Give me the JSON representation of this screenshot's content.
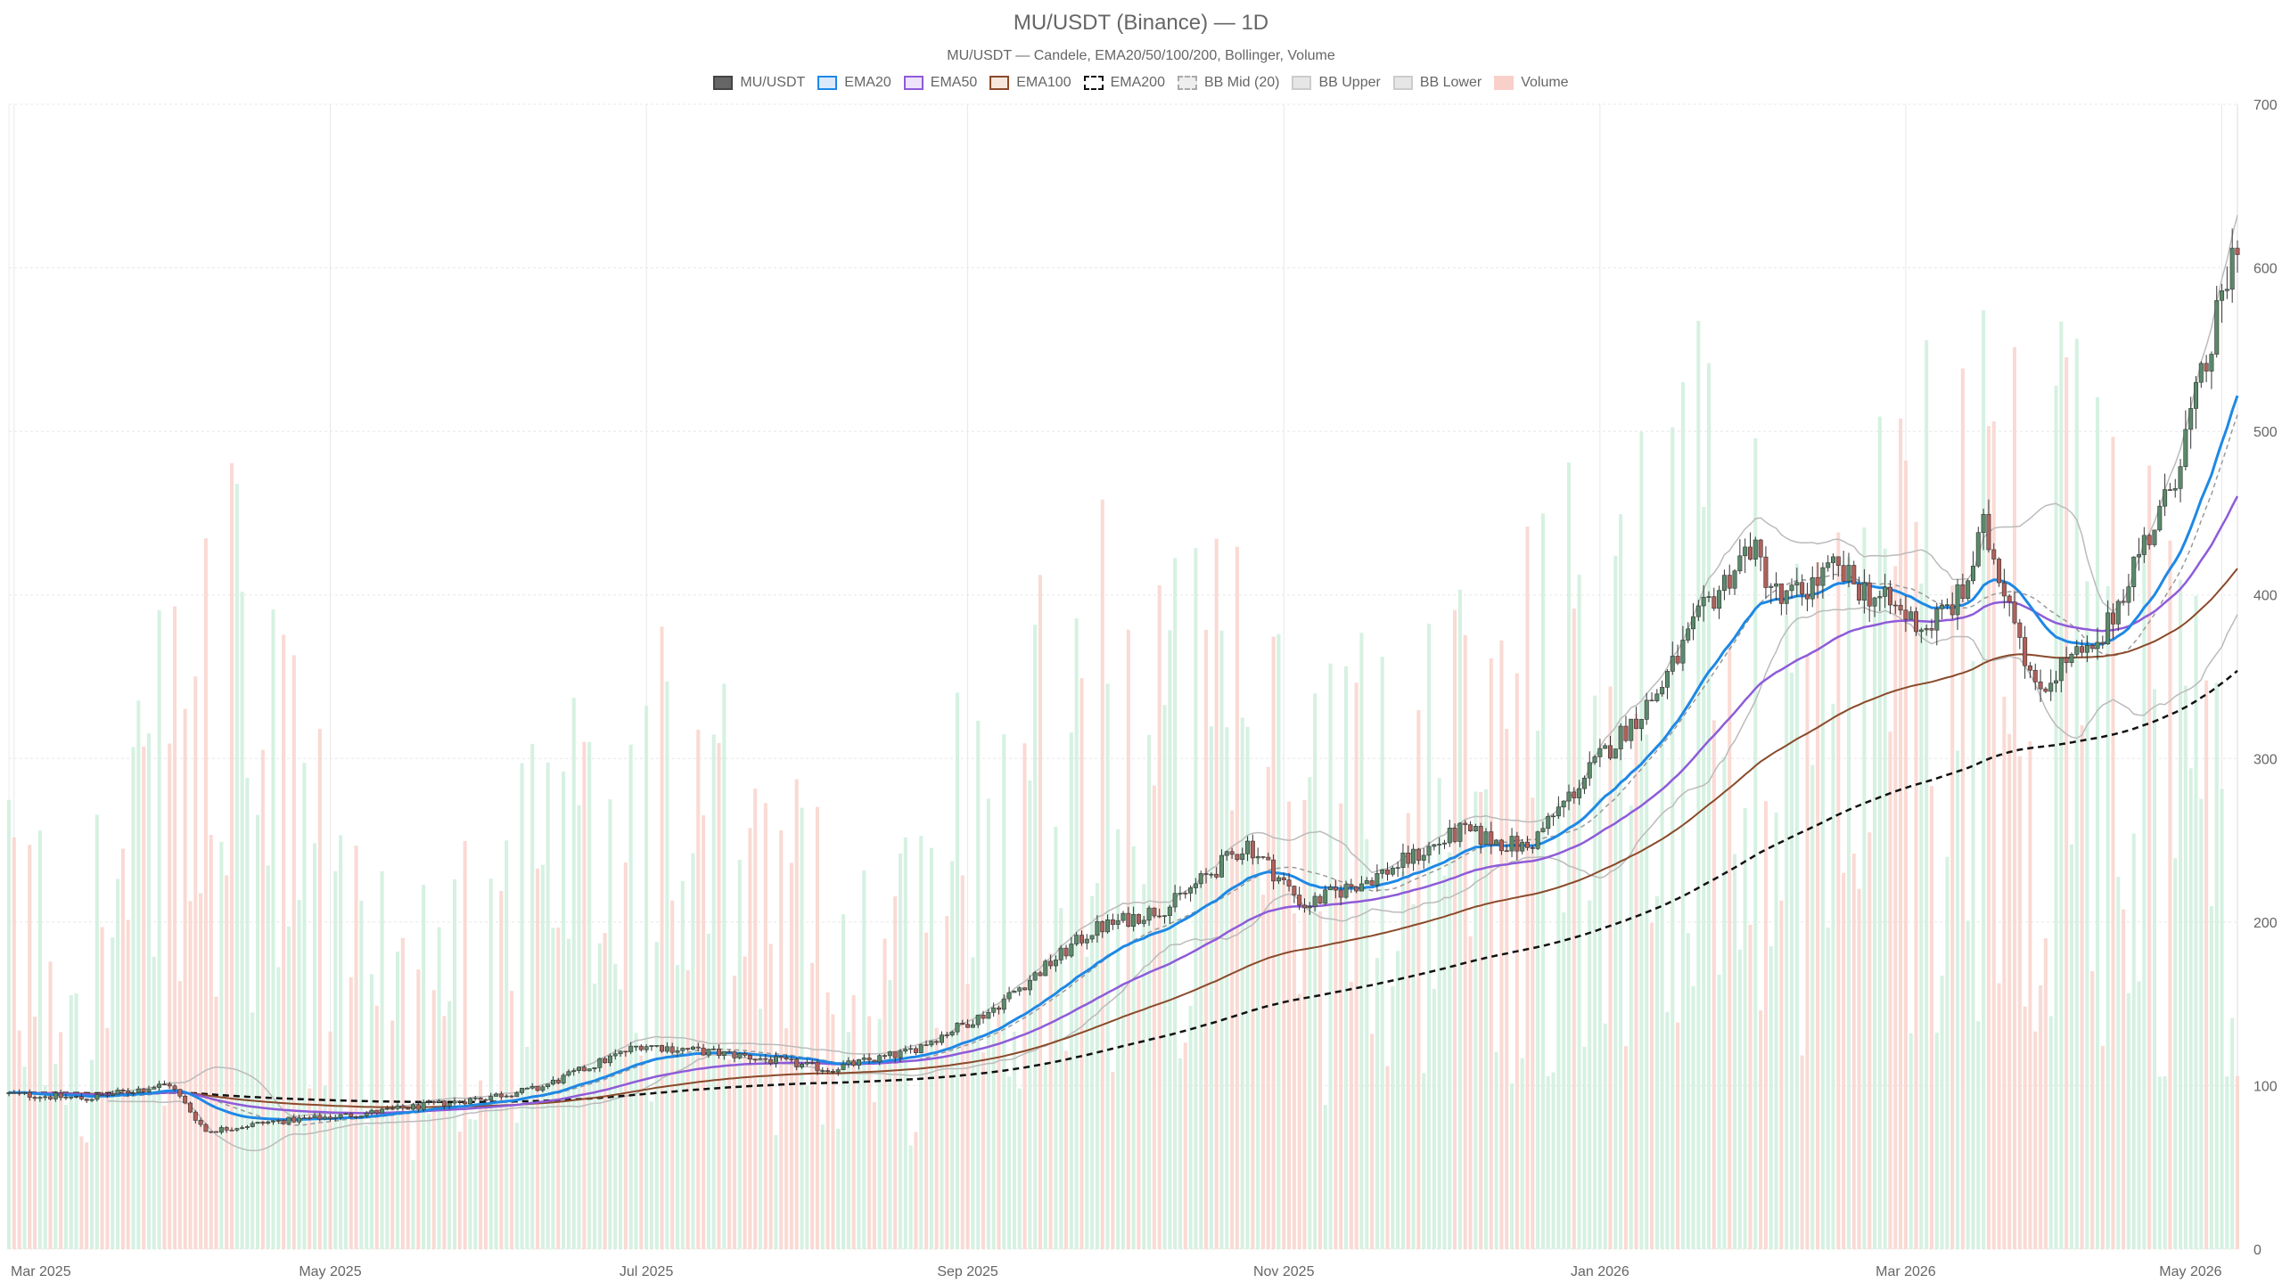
{
  "chart_data": {
    "type": "candlestick",
    "title": "MU/USDT (Binance) — 1D",
    "subtitle": "MU/USDT — Candele, EMA20/50/100/200, Bollinger, Volume",
    "legend": [
      {
        "label": "MU/USDT",
        "fill": "#666666",
        "stroke": "#444444",
        "dash": false
      },
      {
        "label": "EMA20",
        "fill": "#dbe9fb",
        "stroke": "#1e88e5",
        "dash": false
      },
      {
        "label": "EMA50",
        "fill": "#efe3fb",
        "stroke": "#8e5bd8",
        "dash": false
      },
      {
        "label": "EMA100",
        "fill": "#f6e6dc",
        "stroke": "#8a4a2b",
        "dash": false
      },
      {
        "label": "EMA200",
        "fill": "#ffffff",
        "stroke": "#111111",
        "dash": true
      },
      {
        "label": "BB Mid (20)",
        "fill": "#eeeeee",
        "stroke": "#aaaaaa",
        "dash": true
      },
      {
        "label": "BB Upper",
        "fill": "#e6e6e6",
        "stroke": "#cccccc",
        "dash": false
      },
      {
        "label": "BB Lower",
        "fill": "#e6e6e6",
        "stroke": "#cccccc",
        "dash": false
      },
      {
        "label": "Volume",
        "fill": "#f9cfc9",
        "stroke": "#f9cfc9",
        "dash": false
      }
    ],
    "x_ticks": [
      "Mar 2025",
      "May 2025",
      "Jul 2025",
      "Sep 2025",
      "Nov 2025",
      "Jan 2026",
      "Mar 2026",
      "May 2026"
    ],
    "x_tick_dates": [
      "2025-03-01",
      "2025-05-01",
      "2025-07-01",
      "2025-09-01",
      "2025-11-01",
      "2026-01-01",
      "2026-03-01",
      "2026-05-01"
    ],
    "x_range": [
      "2025-02-28",
      "2026-05-04"
    ],
    "y_ticks": [
      0,
      100,
      200,
      300,
      400,
      500,
      600,
      700
    ],
    "ylim": [
      0,
      700
    ],
    "grid": true,
    "legend_position": "top",
    "colors": {
      "up": "#5a8a6a",
      "down": "#b0605a",
      "vol_up": "#cfeedd",
      "vol_down": "#f9d3cd",
      "ema20": "#1e88e5",
      "ema50": "#8e5bd8",
      "ema100": "#8a4a2b",
      "ema200": "#111111",
      "bb": "#bbbbbb",
      "bb_mid": "#999999"
    },
    "price_anchors": [
      [
        "2025-02-28",
        95
      ],
      [
        "2025-03-15",
        92
      ],
      [
        "2025-03-31",
        101
      ],
      [
        "2025-04-07",
        72
      ],
      [
        "2025-04-20",
        78
      ],
      [
        "2025-05-05",
        82
      ],
      [
        "2025-05-25",
        90
      ],
      [
        "2025-06-10",
        98
      ],
      [
        "2025-06-30",
        125
      ],
      [
        "2025-07-20",
        118
      ],
      [
        "2025-08-05",
        110
      ],
      [
        "2025-08-20",
        120
      ],
      [
        "2025-09-05",
        145
      ],
      [
        "2025-09-25",
        195
      ],
      [
        "2025-10-10",
        210
      ],
      [
        "2025-10-25",
        248
      ],
      [
        "2025-11-05",
        210
      ],
      [
        "2025-11-20",
        230
      ],
      [
        "2025-12-05",
        255
      ],
      [
        "2025-12-18",
        245
      ],
      [
        "2026-01-01",
        300
      ],
      [
        "2026-01-12",
        340
      ],
      [
        "2026-01-22",
        395
      ],
      [
        "2026-01-30",
        430
      ],
      [
        "2026-02-05",
        395
      ],
      [
        "2026-02-15",
        415
      ],
      [
        "2026-02-25",
        395
      ],
      [
        "2026-03-05",
        380
      ],
      [
        "2026-03-12",
        400
      ],
      [
        "2026-03-16",
        440
      ],
      [
        "2026-03-22",
        390
      ],
      [
        "2026-03-26",
        340
      ],
      [
        "2026-04-01",
        360
      ],
      [
        "2026-04-07",
        365
      ],
      [
        "2026-04-14",
        420
      ],
      [
        "2026-04-20",
        455
      ],
      [
        "2026-04-28",
        540
      ],
      [
        "2026-05-04",
        620
      ]
    ],
    "volume_anchors": [
      [
        "2025-02-28",
        180
      ],
      [
        "2025-03-20",
        200
      ],
      [
        "2025-04-10",
        330
      ],
      [
        "2025-05-10",
        150
      ],
      [
        "2025-06-10",
        210
      ],
      [
        "2025-07-01",
        260
      ],
      [
        "2025-08-01",
        190
      ],
      [
        "2025-08-20",
        180
      ],
      [
        "2025-09-15",
        320
      ],
      [
        "2025-10-20",
        290
      ],
      [
        "2025-11-15",
        260
      ],
      [
        "2025-12-15",
        300
      ],
      [
        "2026-01-15",
        380
      ],
      [
        "2026-02-15",
        330
      ],
      [
        "2026-03-15",
        420
      ],
      [
        "2026-04-15",
        330
      ],
      [
        "2026-05-04",
        280
      ]
    ]
  }
}
